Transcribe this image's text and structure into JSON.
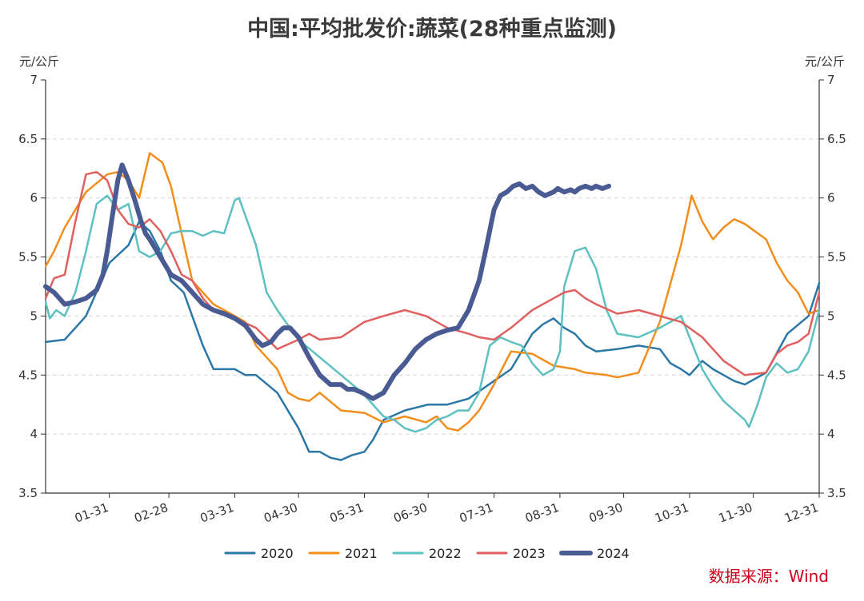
{
  "chart_data": {
    "type": "line",
    "title": "中国:平均批发价:蔬菜(28种重点监测)",
    "ylabel_left": "元/公斤",
    "ylabel_right": "元/公斤",
    "ylim": [
      3.5,
      7
    ],
    "y_ticks": [
      "3.5",
      "4",
      "4.5",
      "5",
      "5.5",
      "6",
      "6.5",
      "7"
    ],
    "y_tick_values": [
      3.5,
      4,
      4.5,
      5,
      5.5,
      6,
      6.5,
      7
    ],
    "x_ticks": [
      "01-31",
      "02-28",
      "03-31",
      "04-30",
      "05-31",
      "06-30",
      "07-31",
      "08-31",
      "09-30",
      "10-31",
      "11-30",
      "12-31"
    ],
    "x_tick_days": [
      31,
      59,
      90,
      120,
      151,
      181,
      212,
      243,
      273,
      304,
      334,
      365
    ],
    "x_range": [
      1,
      365
    ],
    "grid": true,
    "legend_position": "bottom",
    "source": "数据来源：Wind",
    "series": [
      {
        "name": "2020",
        "color": "#2b78a6",
        "width": 2.5,
        "x": [
          1,
          10,
          20,
          31,
          40,
          45,
          50,
          55,
          60,
          66,
          70,
          75,
          80,
          90,
          95,
          100,
          110,
          120,
          125,
          130,
          135,
          140,
          145,
          151,
          155,
          160,
          170,
          181,
          190,
          200,
          212,
          220,
          230,
          235,
          240,
          245,
          250,
          255,
          260,
          270,
          280,
          290,
          295,
          300,
          304,
          310,
          315,
          320,
          325,
          330,
          340,
          350,
          360,
          365
        ],
        "y": [
          4.78,
          4.8,
          5.0,
          5.45,
          5.6,
          5.8,
          5.72,
          5.55,
          5.3,
          5.2,
          5.0,
          4.75,
          4.55,
          4.55,
          4.5,
          4.5,
          4.35,
          4.05,
          3.85,
          3.85,
          3.8,
          3.78,
          3.82,
          3.85,
          3.95,
          4.12,
          4.2,
          4.25,
          4.25,
          4.3,
          4.45,
          4.55,
          4.85,
          4.93,
          4.98,
          4.9,
          4.85,
          4.75,
          4.7,
          4.72,
          4.75,
          4.72,
          4.6,
          4.55,
          4.5,
          4.62,
          4.55,
          4.5,
          4.45,
          4.42,
          4.52,
          4.85,
          5.0,
          5.28
        ]
      },
      {
        "name": "2021",
        "color": "#f28e1c",
        "width": 2.5,
        "x": [
          1,
          5,
          10,
          20,
          30,
          35,
          40,
          45,
          50,
          56,
          60,
          70,
          80,
          90,
          95,
          100,
          110,
          115,
          120,
          125,
          130,
          140,
          151,
          160,
          170,
          180,
          185,
          190,
          195,
          200,
          205,
          212,
          220,
          230,
          240,
          250,
          255,
          265,
          270,
          280,
          290,
          300,
          305,
          310,
          315,
          320,
          325,
          330,
          340,
          345,
          350,
          355,
          360,
          365
        ],
        "y": [
          5.42,
          5.55,
          5.75,
          6.05,
          6.2,
          6.22,
          6.15,
          6.0,
          6.38,
          6.3,
          6.1,
          5.3,
          5.1,
          5.0,
          4.95,
          4.75,
          4.55,
          4.35,
          4.3,
          4.28,
          4.35,
          4.2,
          4.18,
          4.1,
          4.15,
          4.1,
          4.15,
          4.05,
          4.03,
          4.1,
          4.2,
          4.42,
          4.7,
          4.68,
          4.58,
          4.55,
          4.52,
          4.5,
          4.48,
          4.52,
          4.95,
          5.6,
          6.02,
          5.8,
          5.65,
          5.75,
          5.82,
          5.78,
          5.65,
          5.45,
          5.3,
          5.2,
          5.02,
          5.05
        ]
      },
      {
        "name": "2022",
        "color": "#5ec0c0",
        "width": 2.5,
        "x": [
          1,
          3,
          6,
          10,
          15,
          20,
          25,
          30,
          35,
          40,
          45,
          50,
          55,
          60,
          65,
          70,
          75,
          80,
          85,
          90,
          92,
          95,
          100,
          105,
          110,
          120,
          130,
          140,
          150,
          155,
          160,
          165,
          170,
          175,
          180,
          185,
          190,
          195,
          200,
          205,
          210,
          215,
          220,
          225,
          230,
          235,
          240,
          243,
          245,
          250,
          255,
          260,
          265,
          270,
          280,
          290,
          300,
          310,
          315,
          320,
          325,
          330,
          332,
          336,
          340,
          345,
          350,
          355,
          360,
          365
        ],
        "y": [
          5.12,
          4.98,
          5.05,
          5.0,
          5.2,
          5.55,
          5.95,
          6.02,
          5.9,
          5.95,
          5.55,
          5.5,
          5.55,
          5.7,
          5.72,
          5.72,
          5.68,
          5.72,
          5.7,
          5.98,
          6.0,
          5.85,
          5.6,
          5.2,
          5.05,
          4.8,
          4.65,
          4.5,
          4.35,
          4.25,
          4.15,
          4.12,
          4.05,
          4.02,
          4.05,
          4.12,
          4.15,
          4.2,
          4.2,
          4.35,
          4.75,
          4.82,
          4.78,
          4.75,
          4.6,
          4.5,
          4.55,
          4.7,
          5.25,
          5.55,
          5.58,
          5.4,
          5.05,
          4.85,
          4.82,
          4.9,
          5.0,
          4.55,
          4.4,
          4.28,
          4.2,
          4.12,
          4.06,
          4.25,
          4.48,
          4.6,
          4.52,
          4.55,
          4.7,
          5.05
        ]
      },
      {
        "name": "2023",
        "color": "#e06060",
        "width": 2.5,
        "x": [
          1,
          5,
          10,
          15,
          20,
          25,
          30,
          35,
          40,
          45,
          50,
          55,
          60,
          65,
          70,
          75,
          80,
          90,
          100,
          110,
          120,
          125,
          130,
          140,
          151,
          160,
          170,
          180,
          185,
          190,
          200,
          205,
          212,
          220,
          230,
          240,
          245,
          250,
          255,
          260,
          270,
          280,
          290,
          300,
          310,
          320,
          330,
          340,
          345,
          350,
          355,
          360,
          365
        ],
        "y": [
          5.15,
          5.32,
          5.35,
          5.8,
          6.2,
          6.22,
          6.15,
          5.9,
          5.78,
          5.75,
          5.82,
          5.72,
          5.55,
          5.35,
          5.3,
          5.15,
          5.05,
          4.98,
          4.9,
          4.72,
          4.8,
          4.85,
          4.8,
          4.82,
          4.95,
          5.0,
          5.05,
          5.0,
          4.95,
          4.9,
          4.85,
          4.82,
          4.8,
          4.9,
          5.05,
          5.15,
          5.2,
          5.22,
          5.15,
          5.1,
          5.02,
          5.05,
          5.0,
          4.95,
          4.82,
          4.62,
          4.5,
          4.52,
          4.68,
          4.75,
          4.78,
          4.85,
          5.2
        ]
      },
      {
        "name": "2024",
        "color": "#4a5a92",
        "width": 6,
        "x": [
          1,
          5,
          10,
          15,
          20,
          25,
          28,
          30,
          32,
          35,
          37,
          40,
          43,
          46,
          48,
          50,
          55,
          60,
          65,
          70,
          75,
          80,
          85,
          90,
          95,
          100,
          103,
          107,
          110,
          113,
          116,
          120,
          125,
          130,
          135,
          140,
          143,
          146,
          150,
          155,
          160,
          165,
          170,
          175,
          180,
          185,
          190,
          195,
          200,
          205,
          208,
          212,
          215,
          218,
          221,
          224,
          227,
          230,
          233,
          236,
          240,
          242,
          245,
          248,
          250,
          252,
          255,
          258,
          260,
          263,
          266
        ],
        "y": [
          5.25,
          5.2,
          5.1,
          5.12,
          5.15,
          5.22,
          5.35,
          5.55,
          5.8,
          6.15,
          6.28,
          6.15,
          5.98,
          5.8,
          5.7,
          5.65,
          5.5,
          5.35,
          5.3,
          5.2,
          5.1,
          5.05,
          5.02,
          4.98,
          4.92,
          4.8,
          4.75,
          4.78,
          4.85,
          4.9,
          4.9,
          4.82,
          4.65,
          4.5,
          4.42,
          4.42,
          4.38,
          4.38,
          4.35,
          4.3,
          4.35,
          4.5,
          4.6,
          4.72,
          4.8,
          4.85,
          4.88,
          4.9,
          5.05,
          5.3,
          5.55,
          5.9,
          6.02,
          6.05,
          6.1,
          6.12,
          6.08,
          6.1,
          6.05,
          6.02,
          6.05,
          6.08,
          6.05,
          6.07,
          6.05,
          6.08,
          6.1,
          6.08,
          6.1,
          6.08,
          6.1
        ]
      }
    ]
  }
}
